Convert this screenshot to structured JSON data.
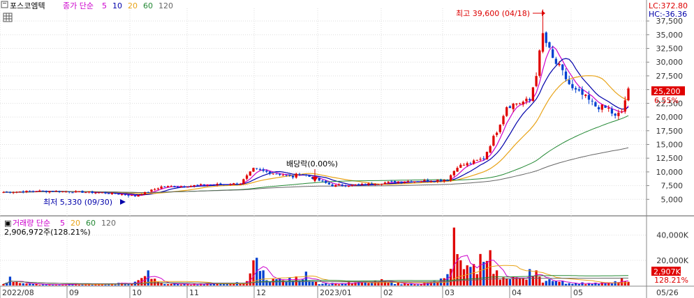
{
  "header": {
    "stock_name": "포스코엠텍",
    "indicator": "종가 단순",
    "ma_periods": [
      "5",
      "10",
      "20",
      "60",
      "120"
    ],
    "ma_colors": [
      "#cc00cc",
      "#0000aa",
      "#e8a317",
      "#228833",
      "#666666"
    ]
  },
  "volume_header": {
    "title": "거래량 단순",
    "ma_periods": [
      "5",
      "20",
      "60",
      "120"
    ],
    "ma_colors": [
      "#cc00cc",
      "#e8a317",
      "#228833",
      "#666666"
    ],
    "value_text": "2,906,972주(128.21%)"
  },
  "right_axis": {
    "lc": "LC:372.80",
    "hc": "HC:-36.36",
    "price_badge": "25,200",
    "change_badge": "6.55%",
    "volume_badge": "2,907K",
    "volume_change": "128.21%"
  },
  "annotations": {
    "high": "최고 39,600 (04/18)",
    "low": "최저 5,330 (09/30)",
    "dividend": "배당락(0.00%)"
  },
  "chart_data": {
    "type": "candlestick",
    "price_axis": {
      "ylim": [
        2500,
        39800
      ],
      "ticks": [
        5000,
        7500,
        10000,
        12500,
        15000,
        17500,
        20000,
        22500,
        25000,
        27500,
        30000,
        32500,
        35000,
        37500
      ],
      "tick_labels": [
        "5,000",
        "7,500",
        "10,000",
        "12,500",
        "15,000",
        "17,500",
        "20,000",
        "22,500",
        "25,000",
        "27,500",
        "30,000",
        "32,500",
        "35,000",
        "37,500"
      ]
    },
    "volume_axis": {
      "ylim": [
        0,
        52000
      ],
      "ticks": [
        20000,
        40000
      ],
      "tick_labels": [
        "20,000K",
        "40,000K"
      ]
    },
    "x_ticks": [
      "2022/08",
      "09",
      "10",
      "11",
      "12",
      "2023/01",
      "02",
      "03",
      "04",
      "05",
      "05/26"
    ],
    "high_point": {
      "date": "04/18",
      "value": 39600
    },
    "low_point": {
      "date": "09/30",
      "value": 5330
    },
    "close_anchors": [
      [
        0,
        6300
      ],
      [
        10,
        6500
      ],
      [
        20,
        6400
      ],
      [
        30,
        6200
      ],
      [
        38,
        5800
      ],
      [
        40,
        5600
      ],
      [
        43,
        6200
      ],
      [
        48,
        7300
      ],
      [
        55,
        7400
      ],
      [
        60,
        7600
      ],
      [
        66,
        7700
      ],
      [
        72,
        7900
      ],
      [
        76,
        10500
      ],
      [
        80,
        10000
      ],
      [
        84,
        9600
      ],
      [
        88,
        9100
      ],
      [
        90,
        9800
      ],
      [
        94,
        8900
      ],
      [
        100,
        7500
      ],
      [
        106,
        7600
      ],
      [
        110,
        7700
      ],
      [
        115,
        8000
      ],
      [
        122,
        8300
      ],
      [
        130,
        8400
      ],
      [
        135,
        8600
      ],
      [
        138,
        11000
      ],
      [
        142,
        11600
      ],
      [
        146,
        12500
      ],
      [
        150,
        17500
      ],
      [
        153,
        22000
      ],
      [
        156,
        22500
      ],
      [
        160,
        23000
      ],
      [
        162,
        28000
      ],
      [
        164,
        35000
      ],
      [
        165,
        33500
      ],
      [
        167,
        30500
      ],
      [
        169,
        29000
      ],
      [
        171,
        27000
      ],
      [
        173,
        25000
      ],
      [
        176,
        24000
      ],
      [
        180,
        22000
      ],
      [
        184,
        21500
      ],
      [
        186,
        20000
      ],
      [
        188,
        21000
      ],
      [
        190,
        25200
      ]
    ],
    "volume_anchors": [
      [
        2,
        7000
      ],
      [
        8,
        1500
      ],
      [
        20,
        1200
      ],
      [
        40,
        3000
      ],
      [
        44,
        12000
      ],
      [
        48,
        2500
      ],
      [
        58,
        1400
      ],
      [
        74,
        3500
      ],
      [
        76,
        20000
      ],
      [
        77,
        22000
      ],
      [
        79,
        12000
      ],
      [
        84,
        5500
      ],
      [
        92,
        11000
      ],
      [
        95,
        3000
      ],
      [
        100,
        2000
      ],
      [
        115,
        5000
      ],
      [
        120,
        2500
      ],
      [
        128,
        2000
      ],
      [
        135,
        9000
      ],
      [
        137,
        46000
      ],
      [
        139,
        20000
      ],
      [
        141,
        16000
      ],
      [
        145,
        25000
      ],
      [
        148,
        28000
      ],
      [
        150,
        12000
      ],
      [
        155,
        7000
      ],
      [
        160,
        13000
      ],
      [
        162,
        12000
      ],
      [
        163,
        7000
      ],
      [
        166,
        5000
      ],
      [
        170,
        3500
      ],
      [
        176,
        2500
      ],
      [
        182,
        2800
      ],
      [
        188,
        6000
      ],
      [
        190,
        2900
      ]
    ],
    "bars": 191
  }
}
